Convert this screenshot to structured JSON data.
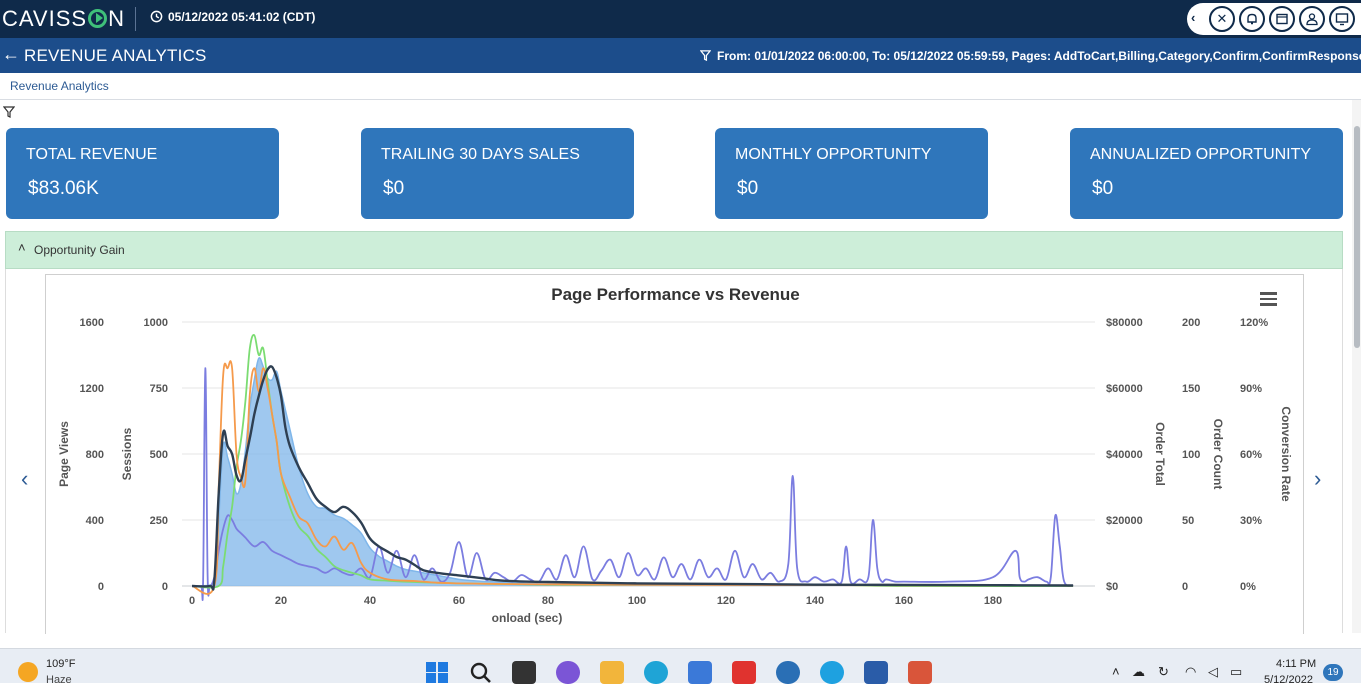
{
  "header": {
    "logo_pre": "CAVISS",
    "logo_post": "N",
    "clock_icon": "clock-icon",
    "datetime": "05/12/2022 05:41:02 (CDT)",
    "icons": [
      "chevron-left-icon",
      "tools-icon",
      "bell-icon",
      "window-icon",
      "user-icon",
      "monitor-icon"
    ]
  },
  "subheader": {
    "title": "REVENUE ANALYTICS",
    "filter": "From: 01/01/2022 06:00:00, To: 05/12/2022 05:59:59, Pages: AddToCart,Billing,Category,Confirm,ConfirmResponse..."
  },
  "breadcrumb": {
    "label": "Revenue Analytics"
  },
  "cards": [
    {
      "title": "TOTAL REVENUE",
      "value": "$83.06K"
    },
    {
      "title": "TRAILING 30 DAYS SALES",
      "value": "$0"
    },
    {
      "title": "MONTHLY OPPORTUNITY",
      "value": "$0"
    },
    {
      "title": "ANNUALIZED OPPORTUNITY",
      "value": "$0"
    }
  ],
  "panel": {
    "title": "Opportunity Gain"
  },
  "colors": {
    "page_views": "#7fb6ea",
    "sessions": "#2e3f52",
    "order_total": "#f59a4b",
    "order_count": "#7bdc72",
    "conversion_rate": "#7b7de0",
    "card_bg": "#2f76bb"
  },
  "chart_data": {
    "type": "area",
    "title": "Page Performance vs Revenue",
    "xlabel": "onload (sec)",
    "xlim": [
      0,
      200
    ],
    "x_ticks": [
      "0",
      "20",
      "40",
      "60",
      "80",
      "100",
      "120",
      "140",
      "160",
      "180"
    ],
    "axes": [
      {
        "label": "Page Views",
        "ticks": [
          "0",
          "400",
          "800",
          "1200",
          "1600"
        ],
        "ylim": [
          0,
          1600
        ]
      },
      {
        "label": "Sessions",
        "ticks": [
          "0",
          "250",
          "500",
          "750",
          "1000"
        ],
        "ylim": [
          0,
          1000
        ]
      },
      {
        "label": "Order Total",
        "ticks": [
          "$0",
          "$20000",
          "$40000",
          "$60000",
          "$80000"
        ],
        "ylim": [
          0,
          80000
        ]
      },
      {
        "label": "Order Count",
        "ticks": [
          "0",
          "50",
          "100",
          "150",
          "200"
        ],
        "ylim": [
          0,
          200
        ]
      },
      {
        "label": "Conversion Rate",
        "ticks": [
          "0%",
          "30%",
          "60%",
          "90%",
          "120%"
        ],
        "ylim": [
          0,
          120
        ]
      }
    ],
    "series": [
      {
        "key": "page_views",
        "axis": 0,
        "x": [
          0,
          4,
          5,
          6,
          7,
          8,
          9,
          10,
          11,
          12,
          13,
          14,
          15,
          16,
          17,
          18,
          19,
          20,
          22,
          24,
          26,
          28,
          30,
          32,
          34,
          36,
          38,
          40,
          42,
          44,
          46,
          48,
          50,
          52,
          54,
          56,
          58,
          60,
          64,
          68,
          72,
          76,
          80,
          90,
          100,
          120,
          140,
          160,
          180,
          198
        ],
        "y": [
          0,
          5,
          20,
          400,
          850,
          780,
          680,
          560,
          620,
          820,
          1080,
          1250,
          1380,
          1330,
          1260,
          1250,
          1300,
          1180,
          950,
          720,
          560,
          480,
          470,
          430,
          410,
          370,
          320,
          230,
          180,
          150,
          120,
          100,
          90,
          80,
          70,
          60,
          50,
          40,
          30,
          25,
          20,
          15,
          12,
          10,
          8,
          6,
          5,
          4,
          3,
          2
        ]
      },
      {
        "key": "sessions",
        "axis": 1,
        "x": [
          0,
          4,
          5,
          6,
          7,
          8,
          9,
          10,
          11,
          12,
          13,
          14,
          15,
          16,
          17,
          18,
          19,
          20,
          21,
          22,
          24,
          26,
          28,
          30,
          32,
          34,
          36,
          38,
          40,
          42,
          44,
          46,
          48,
          50,
          52,
          55,
          60,
          65,
          70,
          80,
          100,
          120,
          140,
          160,
          180,
          198
        ],
        "y": [
          0,
          0,
          20,
          350,
          580,
          530,
          500,
          420,
          400,
          480,
          560,
          650,
          720,
          780,
          820,
          830,
          790,
          720,
          600,
          530,
          450,
          390,
          330,
          300,
          280,
          300,
          280,
          240,
          180,
          150,
          130,
          110,
          100,
          80,
          60,
          50,
          40,
          30,
          20,
          15,
          10,
          8,
          5,
          4,
          3,
          2
        ]
      },
      {
        "key": "order_total",
        "axis": 2,
        "x": [
          0,
          5,
          6,
          7,
          8,
          9,
          10,
          11,
          12,
          13,
          14,
          15,
          16,
          17,
          18,
          19,
          20,
          22,
          24,
          26,
          28,
          30,
          32,
          34,
          36,
          38,
          40,
          44,
          50,
          55,
          60,
          70,
          80,
          100,
          120,
          140,
          160,
          180,
          198
        ],
        "y": [
          0,
          0,
          30000,
          64000,
          66000,
          66000,
          40000,
          33000,
          32000,
          58000,
          66000,
          59000,
          66000,
          60000,
          52000,
          44000,
          34000,
          27000,
          21000,
          19000,
          14000,
          12000,
          15000,
          11000,
          13000,
          7000,
          4000,
          2000,
          1500,
          1000,
          800,
          600,
          500,
          400,
          300,
          300,
          200,
          200,
          100
        ]
      },
      {
        "key": "order_count",
        "axis": 3,
        "x": [
          0,
          6,
          7,
          8,
          9,
          10,
          11,
          12,
          13,
          14,
          15,
          16,
          17,
          18,
          19,
          20,
          22,
          24,
          26,
          28,
          30,
          32,
          34,
          36,
          38,
          40,
          44,
          50,
          60,
          80,
          100,
          140,
          160,
          198
        ],
        "y": [
          0,
          0,
          15,
          40,
          60,
          90,
          110,
          140,
          180,
          190,
          175,
          180,
          155,
          130,
          110,
          85,
          60,
          45,
          38,
          28,
          22,
          15,
          12,
          10,
          8,
          5,
          4,
          3,
          2,
          1,
          1,
          1,
          0,
          0
        ]
      },
      {
        "key": "conversion_rate",
        "axis": 4,
        "x": [
          0,
          2,
          2.5,
          3,
          3.5,
          4,
          5,
          6,
          7,
          8,
          9,
          10,
          11,
          12,
          14,
          16,
          18,
          20,
          22,
          24,
          26,
          28,
          30,
          32,
          34,
          36,
          38,
          40,
          42,
          44,
          46,
          48,
          50,
          52,
          54,
          56,
          58,
          60,
          62,
          64,
          66,
          68,
          70,
          72,
          74,
          76,
          78,
          80,
          82,
          84,
          86,
          88,
          90,
          92,
          94,
          96,
          98,
          100,
          102,
          104,
          106,
          108,
          110,
          112,
          114,
          116,
          118,
          120,
          122,
          124,
          126,
          128,
          130,
          132,
          134,
          135,
          136,
          138,
          140,
          142,
          144,
          146,
          147,
          148,
          150,
          152,
          153,
          154,
          155,
          156,
          158,
          160,
          170,
          180,
          185,
          186,
          187,
          188,
          190,
          192,
          193,
          194,
          195,
          196,
          198
        ],
        "y": [
          0,
          0,
          2,
          99,
          5,
          0,
          4,
          16,
          26,
          32,
          30,
          26,
          24,
          22,
          18,
          20,
          16,
          14,
          12,
          10,
          9,
          8,
          6,
          8,
          6,
          5,
          8,
          4,
          18,
          6,
          16,
          4,
          14,
          3,
          8,
          2,
          6,
          20,
          4,
          15,
          3,
          6,
          4,
          2,
          5,
          3,
          2,
          8,
          3,
          14,
          4,
          18,
          3,
          7,
          12,
          4,
          15,
          5,
          8,
          3,
          13,
          4,
          10,
          3,
          12,
          4,
          8,
          3,
          16,
          4,
          10,
          3,
          6,
          2,
          10,
          50,
          8,
          2,
          4,
          2,
          3,
          2,
          18,
          2,
          3,
          4,
          30,
          8,
          2,
          3,
          2,
          2,
          2,
          4,
          16,
          4,
          2,
          3,
          4,
          2,
          4,
          32,
          18,
          2,
          0
        ]
      }
    ]
  },
  "taskbar": {
    "weather_temp": "109°F",
    "weather_desc": "Haze",
    "time": "4:11 PM",
    "date": "5/12/2022",
    "badge": "19"
  }
}
